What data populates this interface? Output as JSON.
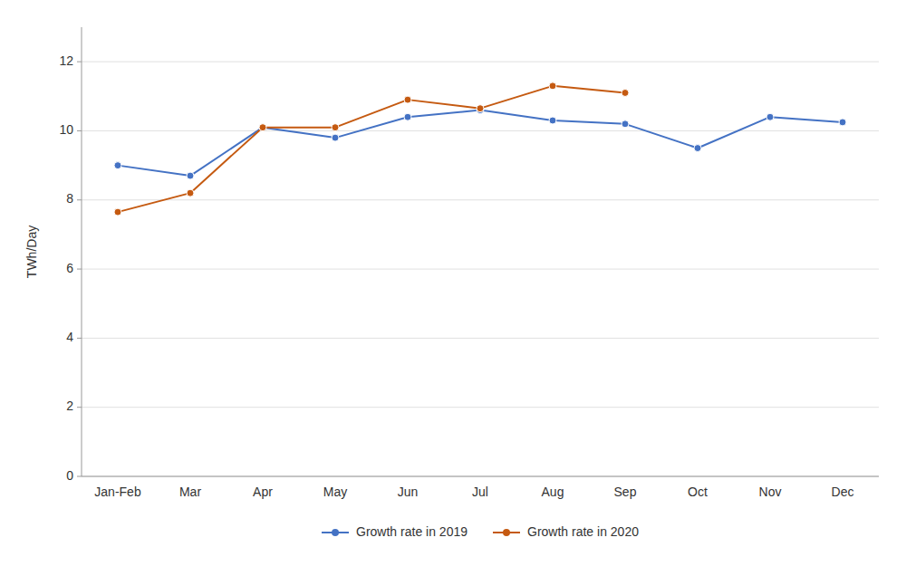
{
  "chart_data": {
    "type": "line",
    "categories": [
      "Jan-Feb",
      "Mar",
      "Apr",
      "May",
      "Jun",
      "Jul",
      "Aug",
      "Sep",
      "Oct",
      "Nov",
      "Dec"
    ],
    "series": [
      {
        "name": "Growth rate in 2019",
        "color": "#4472C4",
        "marker": "circle",
        "values": [
          9.0,
          8.7,
          10.1,
          9.8,
          10.4,
          10.6,
          10.3,
          10.2,
          9.5,
          10.4,
          10.25
        ]
      },
      {
        "name": "Growth rate in 2020",
        "color": "#C55A11",
        "marker": "circle",
        "values": [
          7.65,
          8.2,
          10.1,
          10.1,
          10.9,
          10.65,
          11.3,
          11.1,
          null,
          null,
          null
        ]
      }
    ],
    "y_label": "TWh/Day",
    "ylim": [
      0,
      13
    ],
    "yticks": [
      0,
      2,
      4,
      6,
      8,
      10,
      12
    ],
    "grid": true,
    "legend": "bottom"
  }
}
